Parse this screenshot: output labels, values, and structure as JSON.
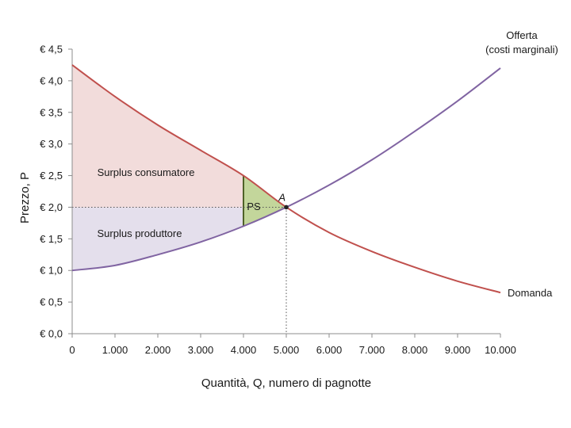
{
  "chart_data": {
    "type": "line",
    "xlabel": "Quantità, Q, numero di pagnotte",
    "ylabel": "Prezzo, P",
    "xlim": [
      0,
      10000
    ],
    "ylim": [
      0,
      4.5
    ],
    "x_ticks": [
      0,
      1000,
      2000,
      3000,
      4000,
      5000,
      6000,
      7000,
      8000,
      9000,
      10000
    ],
    "x_tick_labels": [
      "0",
      "1.000",
      "2.000",
      "3.000",
      "4.000",
      "5.000",
      "6.000",
      "7.000",
      "8.000",
      "9.000",
      "10.000"
    ],
    "y_ticks": [
      0,
      0.5,
      1.0,
      1.5,
      2.0,
      2.5,
      3.0,
      3.5,
      4.0,
      4.5
    ],
    "y_tick_labels": [
      "€ 0,0",
      "€ 0,5",
      "€ 1,0",
      "€ 1,5",
      "€ 2,0",
      "€ 2,5",
      "€ 3,0",
      "€ 3,5",
      "€ 4,0",
      "€ 4,5"
    ],
    "grid": false,
    "series": [
      {
        "name": "Domanda",
        "color": "#c0504d",
        "x": [
          0,
          1000,
          2000,
          3000,
          4000,
          5000,
          6000,
          7000,
          8000,
          9000,
          10000
        ],
        "y": [
          4.25,
          3.75,
          3.3,
          2.9,
          2.5,
          2.0,
          1.6,
          1.3,
          1.05,
          0.83,
          0.65
        ]
      },
      {
        "name": "Offerta (costi marginali)",
        "label_lines": [
          "Offerta",
          "(costi marginali)"
        ],
        "color": "#8064a2",
        "x": [
          0,
          1000,
          2000,
          3000,
          4000,
          5000,
          6000,
          7000,
          8000,
          9000,
          10000
        ],
        "y": [
          1.0,
          1.08,
          1.25,
          1.45,
          1.7,
          2.0,
          2.35,
          2.75,
          3.2,
          3.68,
          4.2
        ]
      }
    ],
    "price_line": 2.0,
    "quantity_line": 5000,
    "cutoff_quantity": 4000,
    "equilibrium": {
      "label": "A",
      "x": 5000,
      "y": 2.0
    },
    "regions": {
      "consumer": {
        "label": "Surplus consumatore",
        "color": "#f2dcdb"
      },
      "producer": {
        "label": "Surplus produttore",
        "color": "#e4dfec"
      },
      "ps": {
        "label": "PS",
        "color": "#c3d69b",
        "border": "#4f6228"
      }
    }
  }
}
